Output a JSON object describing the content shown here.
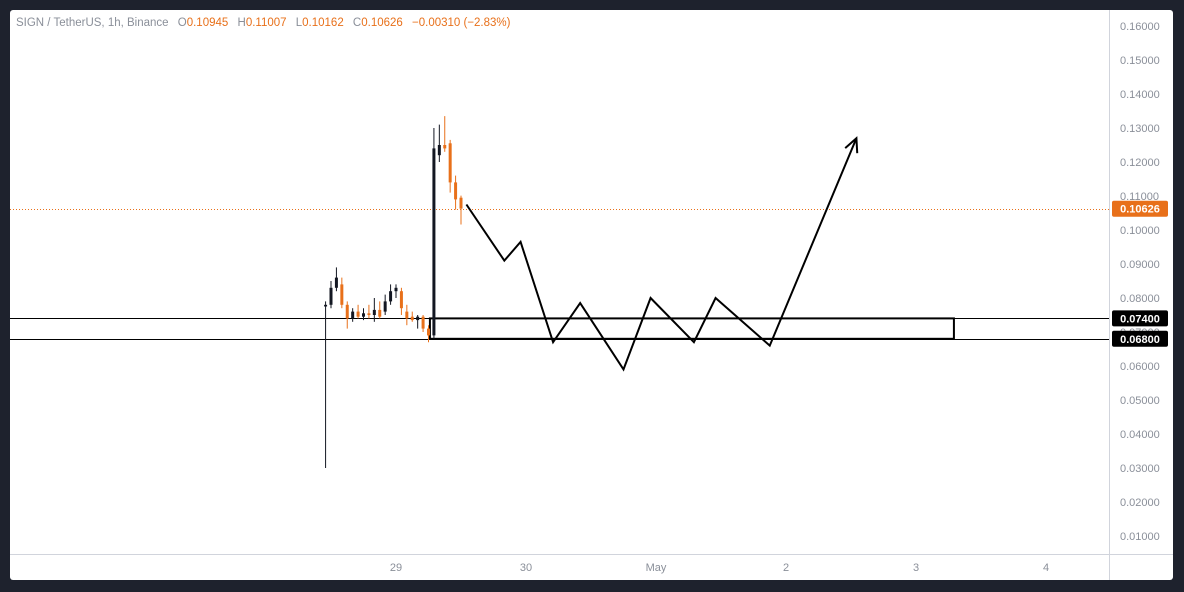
{
  "legend": {
    "symbol": "SIGN / TetherUS, 1h, Binance",
    "open_key": "O",
    "open": "0.10945",
    "high_key": "H",
    "high": "0.11007",
    "low_key": "L",
    "low": "0.10162",
    "close_key": "C",
    "close": "0.10626",
    "change": "−0.00310 (−2.83%)"
  },
  "colors": {
    "background": "#ffffff",
    "frame": "#1e222d",
    "up_candle": "#131722",
    "down_candle": "#e8701a",
    "price_line": "#e8701a",
    "drawing": "#000000",
    "axis_text": "#8a8f99"
  },
  "chart_data": {
    "type": "candlestick",
    "symbol": "SIGN / TetherUS",
    "timeframe": "1h",
    "exchange": "Binance",
    "y_axis": {
      "side": "right",
      "range": [
        0.005,
        0.165
      ],
      "ticks": [
        "0.16000",
        "0.15000",
        "0.14000",
        "0.13000",
        "0.12000",
        "0.11000",
        "0.10000",
        "0.09000",
        "0.08000",
        "0.07000",
        "0.06000",
        "0.05000",
        "0.04000",
        "0.03000",
        "0.02000",
        "0.01000"
      ]
    },
    "x_axis": {
      "labels": [
        {
          "text": "29",
          "t": 0
        },
        {
          "text": "30",
          "t": 24
        },
        {
          "text": "May",
          "t": 48
        },
        {
          "text": "2",
          "t": 72
        },
        {
          "text": "3",
          "t": 96
        },
        {
          "text": "4",
          "t": 120
        }
      ]
    },
    "candles": [
      {
        "t": -13,
        "o": 0.0775,
        "h": 0.079,
        "l": 0.03,
        "c": 0.078
      },
      {
        "t": -12,
        "o": 0.078,
        "h": 0.085,
        "l": 0.077,
        "c": 0.083
      },
      {
        "t": -11,
        "o": 0.083,
        "h": 0.089,
        "l": 0.082,
        "c": 0.086
      },
      {
        "t": -10,
        "o": 0.084,
        "h": 0.086,
        "l": 0.077,
        "c": 0.078
      },
      {
        "t": -9,
        "o": 0.078,
        "h": 0.079,
        "l": 0.071,
        "c": 0.074
      },
      {
        "t": -8,
        "o": 0.074,
        "h": 0.077,
        "l": 0.073,
        "c": 0.076
      },
      {
        "t": -7,
        "o": 0.076,
        "h": 0.078,
        "l": 0.074,
        "c": 0.0745
      },
      {
        "t": -6,
        "o": 0.0745,
        "h": 0.077,
        "l": 0.0735,
        "c": 0.0755
      },
      {
        "t": -5,
        "o": 0.0755,
        "h": 0.078,
        "l": 0.074,
        "c": 0.075
      },
      {
        "t": -4,
        "o": 0.075,
        "h": 0.08,
        "l": 0.073,
        "c": 0.0765
      },
      {
        "t": -3,
        "o": 0.0765,
        "h": 0.079,
        "l": 0.074,
        "c": 0.0745
      },
      {
        "t": -2,
        "o": 0.076,
        "h": 0.081,
        "l": 0.075,
        "c": 0.079
      },
      {
        "t": -1,
        "o": 0.079,
        "h": 0.084,
        "l": 0.078,
        "c": 0.082
      },
      {
        "t": 0,
        "o": 0.082,
        "h": 0.084,
        "l": 0.08,
        "c": 0.083
      },
      {
        "t": 1,
        "o": 0.082,
        "h": 0.083,
        "l": 0.075,
        "c": 0.077
      },
      {
        "t": 2,
        "o": 0.076,
        "h": 0.078,
        "l": 0.072,
        "c": 0.074
      },
      {
        "t": 3,
        "o": 0.0745,
        "h": 0.076,
        "l": 0.073,
        "c": 0.0735
      },
      {
        "t": 4,
        "o": 0.0735,
        "h": 0.075,
        "l": 0.071,
        "c": 0.0745
      },
      {
        "t": 5,
        "o": 0.0745,
        "h": 0.075,
        "l": 0.07,
        "c": 0.071
      },
      {
        "t": 6,
        "o": 0.071,
        "h": 0.072,
        "l": 0.067,
        "c": 0.069
      },
      {
        "t": 7,
        "o": 0.069,
        "h": 0.13,
        "l": 0.068,
        "c": 0.124
      },
      {
        "t": 8,
        "o": 0.122,
        "h": 0.131,
        "l": 0.12,
        "c": 0.125
      },
      {
        "t": 9,
        "o": 0.125,
        "h": 0.1335,
        "l": 0.123,
        "c": 0.124
      },
      {
        "t": 10,
        "o": 0.1255,
        "h": 0.1265,
        "l": 0.111,
        "c": 0.114
      },
      {
        "t": 11,
        "o": 0.114,
        "h": 0.116,
        "l": 0.106,
        "c": 0.109
      },
      {
        "t": 12,
        "o": 0.1095,
        "h": 0.1101,
        "l": 0.1016,
        "c": 0.1063
      }
    ],
    "last_price": 0.10626,
    "last_price_label": "0.10626",
    "horizontal_lines": [
      {
        "value": 0.074,
        "label": "0.07400"
      },
      {
        "value": 0.068,
        "label": "0.06800"
      }
    ],
    "zone": {
      "t_start": 7,
      "t_end": 103,
      "y_top": 0.074,
      "y_bottom": 0.068
    },
    "projection_path": [
      {
        "t": 13,
        "y": 0.1075
      },
      {
        "t": 20,
        "y": 0.091
      },
      {
        "t": 23,
        "y": 0.0965
      },
      {
        "t": 29,
        "y": 0.067
      },
      {
        "t": 34,
        "y": 0.0785
      },
      {
        "t": 42,
        "y": 0.059
      },
      {
        "t": 47,
        "y": 0.08
      },
      {
        "t": 55,
        "y": 0.067
      },
      {
        "t": 59,
        "y": 0.08
      },
      {
        "t": 69,
        "y": 0.066
      },
      {
        "t": 85,
        "y": 0.127
      }
    ]
  }
}
